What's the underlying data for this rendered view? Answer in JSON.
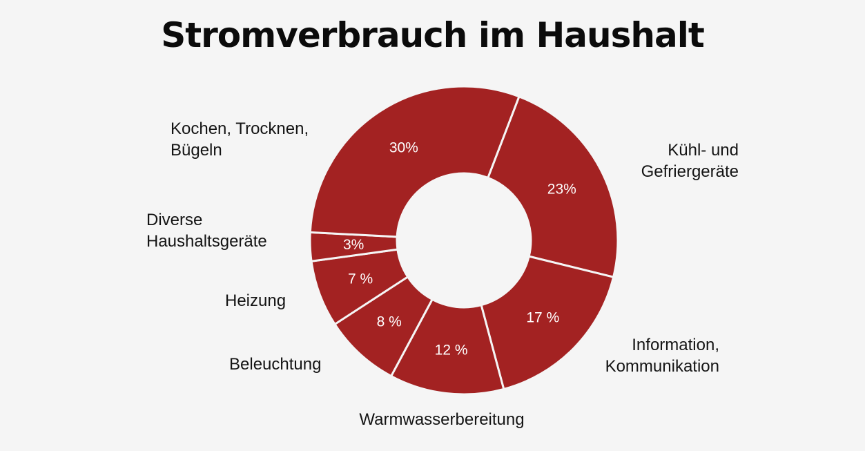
{
  "chart_data": {
    "type": "pie",
    "variant": "donut",
    "title": "Stromverbrauch im Haushalt",
    "slice_color": "#a32222",
    "separator_color": "#f5f5f5",
    "background_color": "#f5f5f5",
    "slices": [
      {
        "key": "kuehl",
        "lines": [
          "Kühl- und",
          "Gefriergeräte"
        ],
        "value": 23,
        "value_label": "23%"
      },
      {
        "key": "info",
        "lines": [
          "Information,",
          "Kommunikation"
        ],
        "value": 17,
        "value_label": "17 %"
      },
      {
        "key": "warm",
        "lines": [
          "Warmwasserbereitung"
        ],
        "value": 12,
        "value_label": "12 %"
      },
      {
        "key": "licht",
        "lines": [
          "Beleuchtung"
        ],
        "value": 8,
        "value_label": "8 %"
      },
      {
        "key": "heiz",
        "lines": [
          "Heizung"
        ],
        "value": 7,
        "value_label": "7 %"
      },
      {
        "key": "diverse",
        "lines": [
          "Diverse",
          "Haushaltsgeräte"
        ],
        "value": 3,
        "value_label": "3%"
      },
      {
        "key": "kochen",
        "lines": [
          "Kochen, Trocknen,",
          "Bügeln"
        ],
        "value": 30,
        "value_label": "30%"
      }
    ]
  }
}
